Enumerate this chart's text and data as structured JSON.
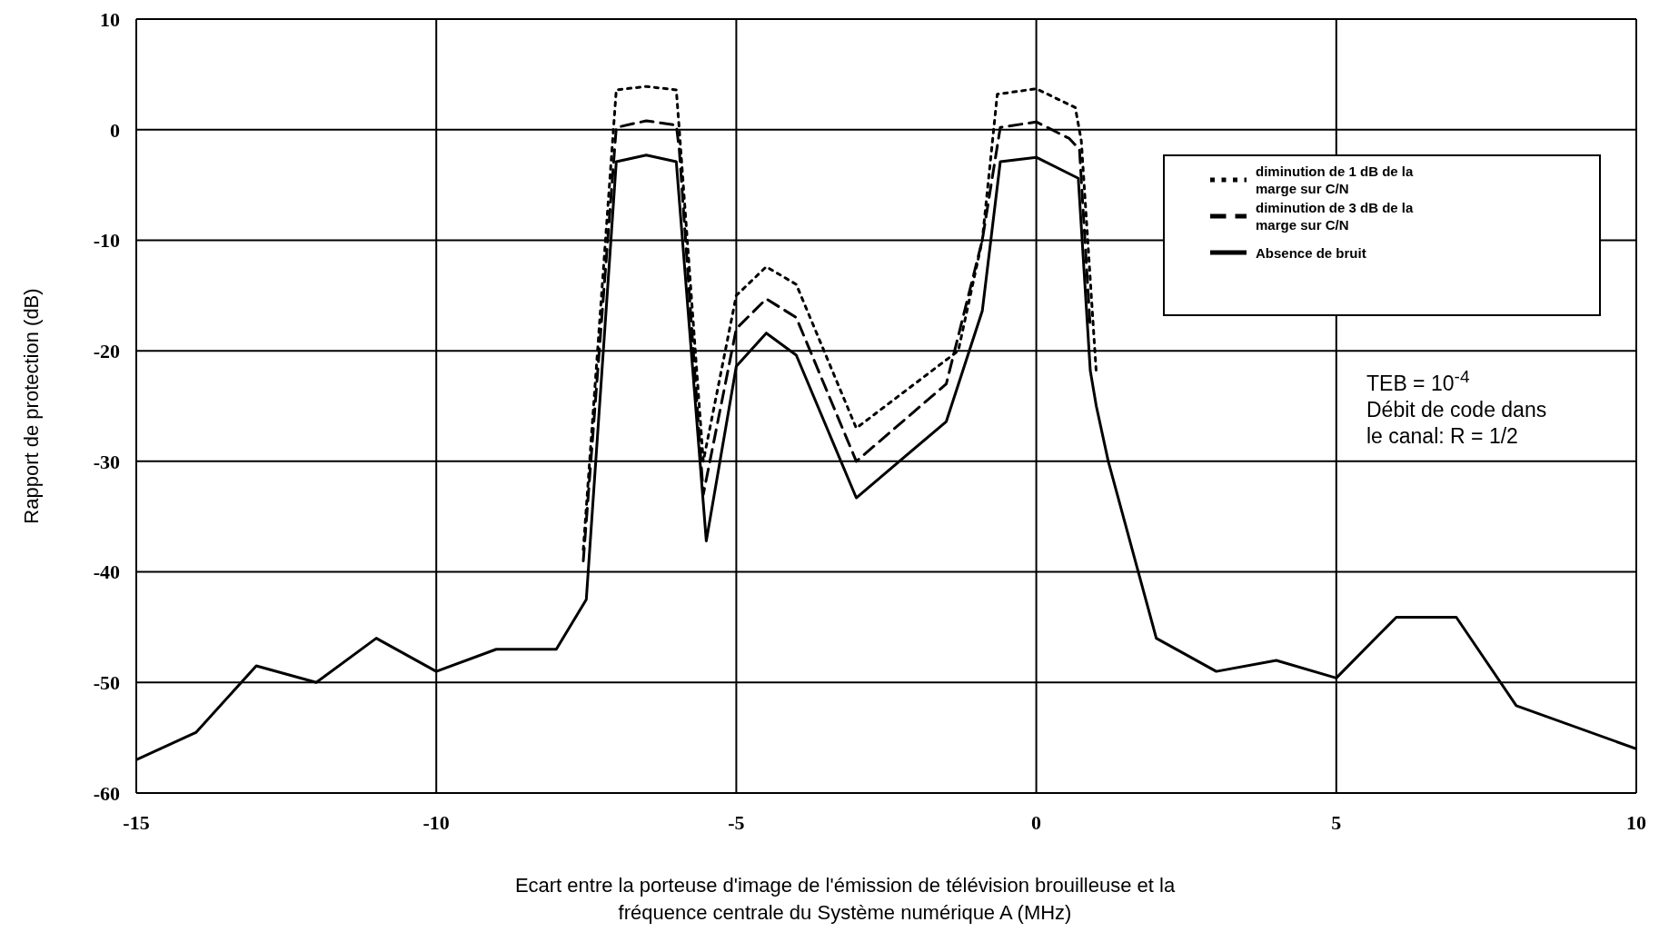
{
  "chart_data": {
    "type": "line",
    "xlabel": "Ecart entre la porteuse d'image de l'émission de télévision brouilleuse et la fréquence centrale du Système numérique A (MHz)",
    "ylabel": "Rapport de protection (dB)",
    "xlim": [
      -15,
      10
    ],
    "xticks": [
      -15,
      -10,
      -5,
      0,
      5,
      10
    ],
    "ylim": [
      -60,
      10
    ],
    "yticks": [
      -60,
      -50,
      -40,
      -30,
      -20,
      -10,
      0,
      10
    ],
    "grid": true,
    "legend": "top right",
    "marker": "none",
    "annotations": [
      "TEB = 10$^{-4}$",
      "Débit de code dans le canal: R = 1/2"
    ],
    "series": [
      {
        "name": "diminution de 1 dB de la marge sur C/N",
        "color": "#000000",
        "line_style": "dotted",
        "x": [
          -7.55,
          -7,
          -6.5,
          -6,
          -5.95,
          -5.55,
          -5,
          -4.5,
          -4,
          -3,
          -1.3,
          -0.9,
          -0.65,
          0,
          0.65,
          0.75,
          1
        ],
        "values": [
          -38,
          3.6,
          3.9,
          3.6,
          0,
          -30,
          -15,
          -12.4,
          -14,
          -27,
          -20,
          -10,
          3.2,
          3.7,
          2,
          -1,
          -22
        ]
      },
      {
        "name": "diminution de 3 dB de la marge sur C/N",
        "color": "#000000",
        "line_style": "dashed",
        "x": [
          -7.55,
          -7,
          -6.5,
          -6,
          -5.95,
          -5.55,
          -5,
          -4.5,
          -4,
          -3,
          -1.5,
          -0.9,
          -0.6,
          0,
          0.55,
          0.72,
          0.9
        ],
        "values": [
          -39,
          0.2,
          0.8,
          0.4,
          -1.8,
          -33,
          -18,
          -15.3,
          -17,
          -30,
          -23,
          -10,
          0.2,
          0.7,
          -0.8,
          -1.8,
          -18
        ]
      },
      {
        "name": "Absence de bruit",
        "color": "#000000",
        "line_style": "solid",
        "x": [
          -15,
          -14,
          -13,
          -12,
          -11,
          -10,
          -9,
          -8,
          -7.5,
          -7,
          -6.5,
          -6,
          -5.5,
          -5,
          -4.5,
          -4,
          -3,
          -1.5,
          -0.9,
          -0.6,
          0,
          0.7,
          0.9,
          1.0,
          1.2,
          1.7,
          2,
          3,
          4,
          5,
          6,
          7,
          8,
          10
        ],
        "values": [
          -57,
          -54.5,
          -48.5,
          -50,
          -46,
          -49,
          -47,
          -47,
          -42.5,
          -2.9,
          -2.3,
          -2.9,
          -37.2,
          -21.4,
          -18.4,
          -20.4,
          -33.3,
          -26.4,
          -16.4,
          -2.9,
          -2.5,
          -4.4,
          -21.8,
          -25,
          -30,
          -40,
          -46,
          -49,
          -48,
          -49.6,
          -44.1,
          -44.1,
          -52.1,
          -56
        ]
      }
    ]
  }
}
